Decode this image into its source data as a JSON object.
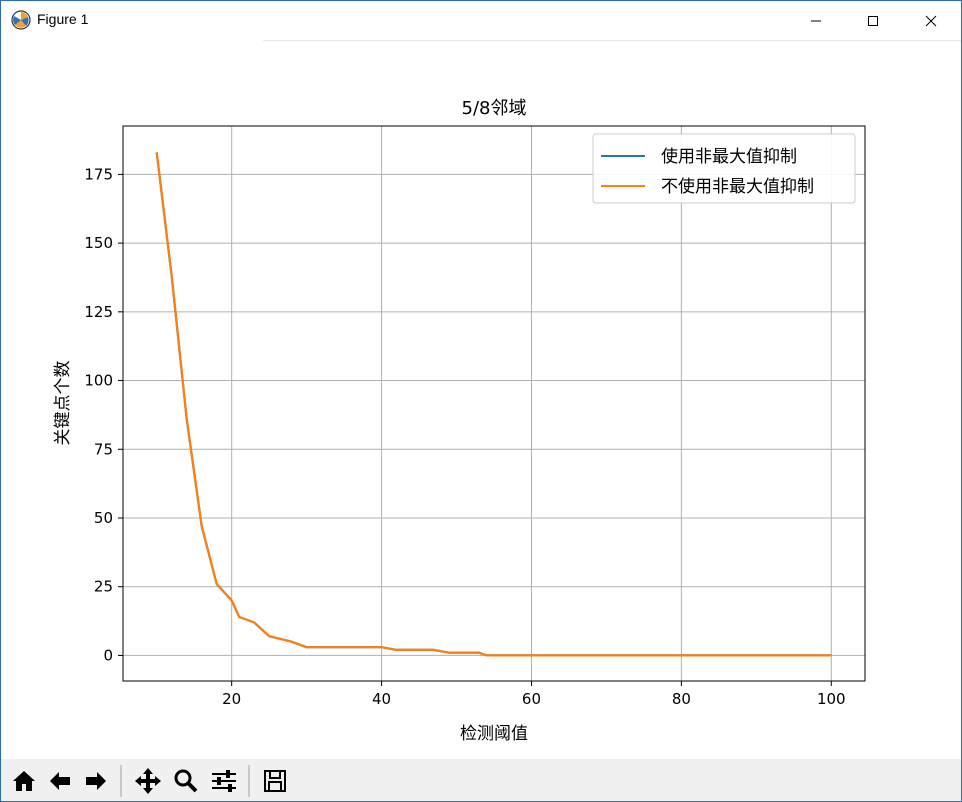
{
  "window": {
    "title": "Figure 1"
  },
  "toolbar": {
    "buttons": [
      {
        "icon": "home-icon",
        "action": "home"
      },
      {
        "icon": "arrow-left-icon",
        "action": "back"
      },
      {
        "icon": "arrow-right-icon",
        "action": "forward"
      },
      {
        "icon": "move-icon",
        "action": "pan"
      },
      {
        "icon": "zoom-icon",
        "action": "zoom"
      },
      {
        "icon": "sliders-icon",
        "action": "configure-subplots"
      },
      {
        "icon": "save-icon",
        "action": "save"
      }
    ]
  },
  "chart_data": {
    "type": "line",
    "title": "5/8邻域",
    "xlabel": "检测阈值",
    "ylabel": "关键点个数",
    "xlim": [
      5.5,
      104.5
    ],
    "ylim": [
      -9.3,
      192.6
    ],
    "xticks": [
      20,
      40,
      60,
      80,
      100
    ],
    "yticks": [
      0,
      25,
      50,
      75,
      100,
      125,
      150,
      175
    ],
    "grid": true,
    "legend_position": "upper right",
    "colors": {
      "series1": "#1f77b4",
      "series2": "#ff7f0e"
    },
    "series": [
      {
        "name": "使用非最大值抑制",
        "x": [
          10,
          12,
          14,
          16,
          18,
          20,
          21,
          23,
          25,
          28,
          30,
          32,
          35,
          38,
          40,
          42,
          45,
          47,
          49,
          53,
          54,
          60,
          70,
          80,
          90,
          100
        ],
        "y": [
          183,
          138,
          86,
          47,
          26,
          20,
          14,
          12,
          7,
          5,
          3,
          3,
          3,
          3,
          3,
          2,
          2,
          2,
          1,
          1,
          0,
          0,
          0,
          0,
          0,
          0
        ]
      },
      {
        "name": "不使用非最大值抑制",
        "x": [
          10,
          12,
          14,
          16,
          18,
          20,
          21,
          23,
          25,
          28,
          30,
          32,
          35,
          38,
          40,
          42,
          45,
          47,
          49,
          53,
          54,
          60,
          70,
          80,
          90,
          100
        ],
        "y": [
          183,
          138,
          86,
          47,
          26,
          20,
          14,
          12,
          7,
          5,
          3,
          3,
          3,
          3,
          3,
          2,
          2,
          2,
          1,
          1,
          0,
          0,
          0,
          0,
          0,
          0
        ]
      }
    ]
  }
}
